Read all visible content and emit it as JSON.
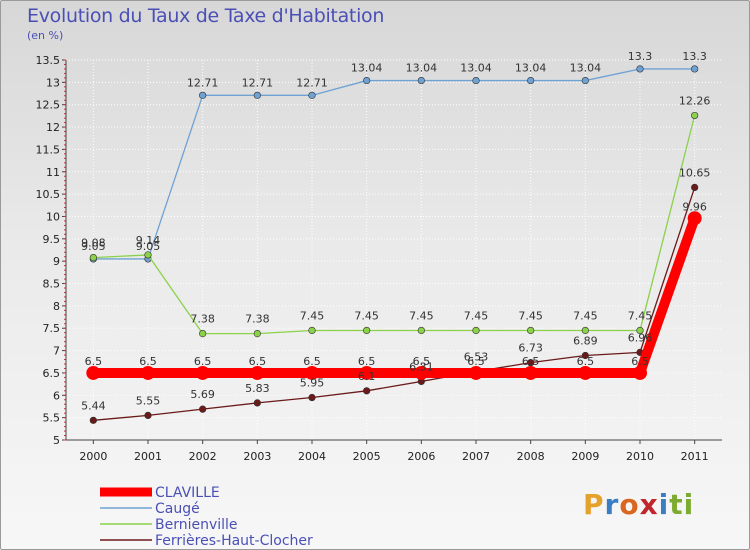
{
  "header": {
    "title": "Evolution du Taux de Taxe d'Habitation",
    "unit": "(en %)"
  },
  "logo": {
    "letters": [
      "P",
      "r",
      "o",
      "x",
      "i",
      "t",
      "i"
    ],
    "colors": [
      "#e5a22b",
      "#3a7fc3",
      "#d9671f",
      "#c1262d",
      "#3a7fc3",
      "#7cab2f",
      "#7cab2f"
    ]
  },
  "chart_data": {
    "type": "line",
    "title": "Evolution du Taux de Taxe d'Habitation",
    "ylabel": "(en %)",
    "xlabel": "",
    "categories": [
      "2000",
      "2001",
      "2002",
      "2003",
      "2004",
      "2005",
      "2006",
      "2007",
      "2008",
      "2009",
      "2010",
      "2011"
    ],
    "ylim": [
      5,
      13.5
    ],
    "yticks": [
      5,
      5.5,
      6,
      6.5,
      7,
      7.5,
      8,
      8.5,
      9,
      9.5,
      10,
      10.5,
      11,
      11.5,
      12,
      12.5,
      13,
      13.5
    ],
    "ytick_labels": [
      "5",
      "5.5",
      "6",
      "6.5",
      "7",
      "7.5",
      "8",
      "8.5",
      "9",
      "9.5",
      "10",
      "10.5",
      "11",
      "11.5",
      "12",
      "12.5",
      "13",
      "13.5"
    ],
    "series": [
      {
        "name": "CLAVILLE",
        "color": "#ff0000",
        "values": [
          6.5,
          6.5,
          6.5,
          6.5,
          6.5,
          6.5,
          6.5,
          6.5,
          6.5,
          6.5,
          6.5,
          9.96
        ],
        "labels": [
          "6.5",
          "6.5",
          "6.5",
          "6.5",
          "6.5",
          "6.5",
          "6.5",
          "6.5",
          "6.5",
          "6.5",
          "6.5",
          "9.96"
        ]
      },
      {
        "name": "Caugé",
        "color": "#6fa2d3",
        "values": [
          9.05,
          9.05,
          12.71,
          12.71,
          12.71,
          13.04,
          13.04,
          13.04,
          13.04,
          13.04,
          13.3,
          13.3
        ],
        "labels": [
          "9.05",
          "9.05",
          "12.71",
          "12.71",
          "12.71",
          "13.04",
          "13.04",
          "13.04",
          "13.04",
          "13.04",
          "13.3",
          "13.3"
        ]
      },
      {
        "name": "Bernienville",
        "color": "#8bd14a",
        "values": [
          9.08,
          9.14,
          7.38,
          7.38,
          7.45,
          7.45,
          7.45,
          7.45,
          7.45,
          7.45,
          7.45,
          12.26
        ],
        "labels": [
          "9.08",
          "9.14",
          "7.38",
          "7.38",
          "7.45",
          "7.45",
          "7.45",
          "7.45",
          "7.45",
          "7.45",
          "7.45",
          "12.26"
        ]
      },
      {
        "name": "Ferrières-Haut-Clocher",
        "color": "#6b1a1a",
        "values": [
          5.44,
          5.55,
          5.69,
          5.83,
          5.95,
          6.1,
          6.31,
          6.53,
          6.73,
          6.89,
          6.96,
          10.65
        ],
        "labels": [
          "5.44",
          "5.55",
          "5.69",
          "5.83",
          "5.95",
          "6.1",
          "6.31",
          "6.53",
          "6.73",
          "6.89",
          "6.96",
          "10.65"
        ]
      }
    ],
    "legend": "bottom-left"
  }
}
